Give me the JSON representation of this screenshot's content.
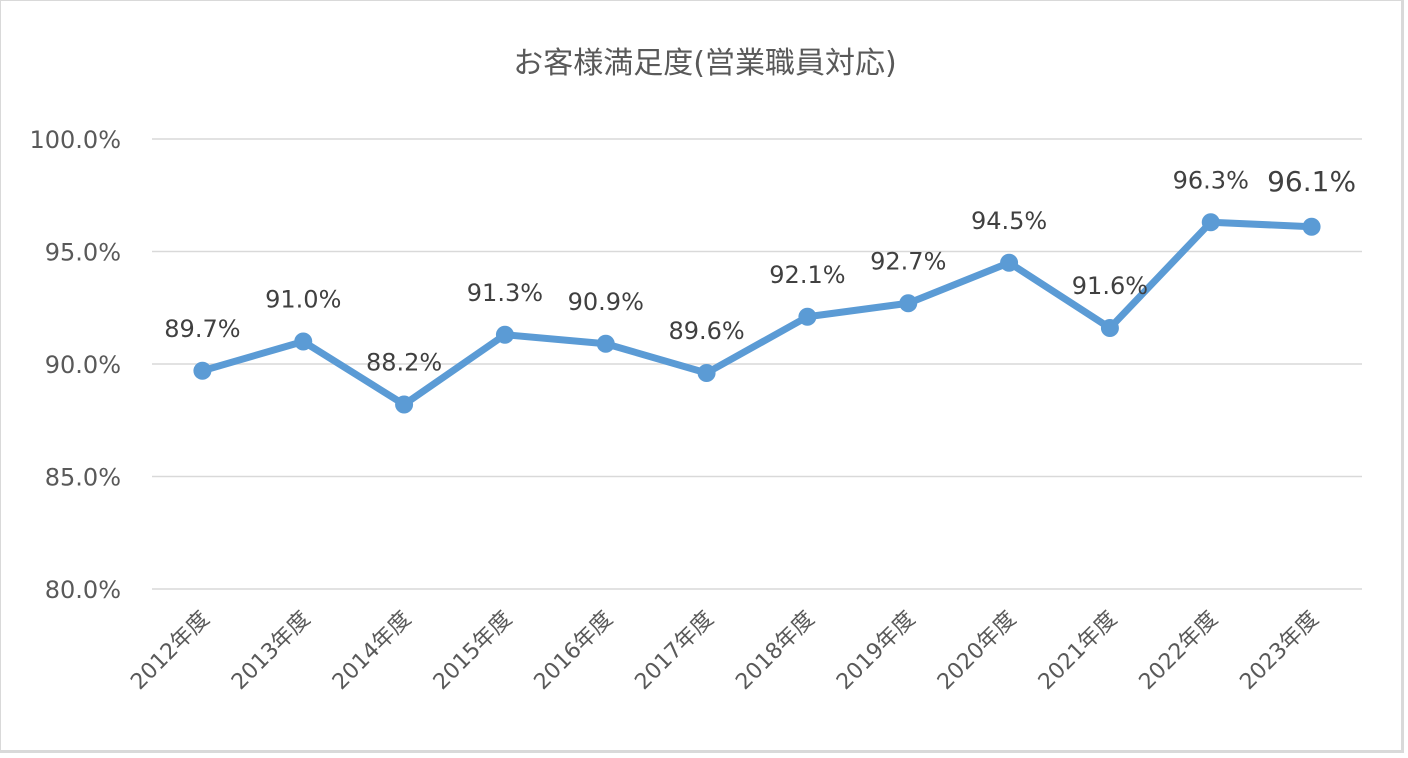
{
  "chart_data": {
    "type": "line",
    "title": "お客様満足度(営業職員対応)",
    "xlabel": "",
    "ylabel": "",
    "categories": [
      "2012年度",
      "2013年度",
      "2014年度",
      "2015年度",
      "2016年度",
      "2017年度",
      "2018年度",
      "2019年度",
      "2020年度",
      "2021年度",
      "2022年度",
      "2023年度"
    ],
    "series": [
      {
        "values": [
          89.7,
          91.0,
          88.2,
          91.3,
          90.9,
          89.6,
          92.1,
          92.7,
          94.5,
          91.6,
          96.3,
          96.1
        ]
      }
    ],
    "data_labels": [
      "89.7%",
      "91.0%",
      "88.2%",
      "91.3%",
      "90.9%",
      "89.6%",
      "92.1%",
      "92.7%",
      "94.5%",
      "91.6%",
      "96.3%",
      "96.1%"
    ],
    "highlight_index": 11,
    "ylim": [
      80,
      100
    ],
    "yticks": [
      80,
      85,
      90,
      95,
      100
    ],
    "ytick_labels": [
      "80.0%",
      "85.0%",
      "90.0%",
      "95.0%",
      "100.0%"
    ],
    "grid": true,
    "legend": "none",
    "colors": {
      "series": "#5b9bd5",
      "highlight_label": "#ff0000",
      "grid": "#d9d9d9",
      "text": "#595959"
    }
  }
}
